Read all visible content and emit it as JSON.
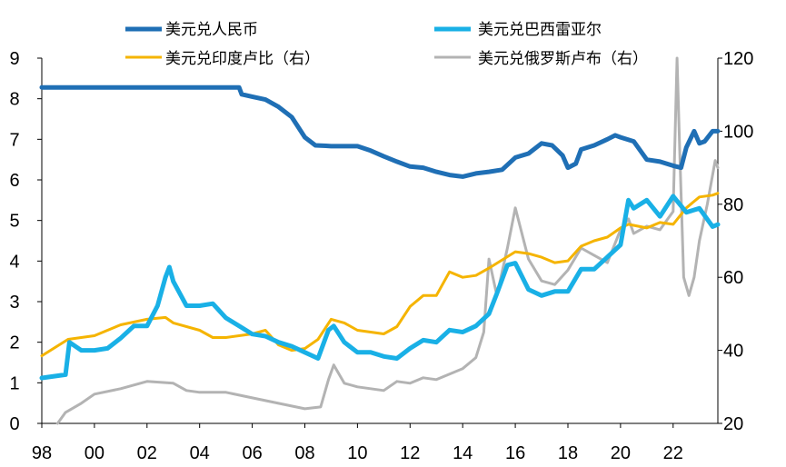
{
  "chart_data": {
    "type": "line",
    "title": "",
    "xlabel": "",
    "ylabel": "",
    "y2label": "",
    "grid": false,
    "legend_position": "top",
    "xlim": [
      1998,
      2023.7
    ],
    "ylim": [
      0,
      9
    ],
    "y2lim": [
      20,
      120
    ],
    "x_tick_values": [
      1998,
      2000,
      2002,
      2004,
      2006,
      2008,
      2010,
      2012,
      2014,
      2016,
      2018,
      2020,
      2022
    ],
    "x_tick_labels": [
      "98",
      "00",
      "02",
      "04",
      "06",
      "08",
      "10",
      "12",
      "14",
      "16",
      "18",
      "20",
      "22"
    ],
    "y_ticks": [
      "0",
      "1",
      "2",
      "3",
      "4",
      "5",
      "6",
      "7",
      "8",
      "9"
    ],
    "y2_ticks": [
      "20",
      "40",
      "60",
      "80",
      "100",
      "120"
    ],
    "series": [
      {
        "name": "美元兑人民币",
        "axis": "left",
        "color": "#1f6fb5",
        "width": 5,
        "x": [
          1998,
          2005.5,
          2005.6,
          2006,
          2006.5,
          2007,
          2007.5,
          2008,
          2008.4,
          2008.8,
          2009,
          2010,
          2010.5,
          2011,
          2011.5,
          2012,
          2012.5,
          2013,
          2013.5,
          2014,
          2014.5,
          2015,
          2015.5,
          2016,
          2016.5,
          2017,
          2017.4,
          2017.8,
          2018,
          2018.3,
          2018.5,
          2019,
          2019.5,
          2019.8,
          2020,
          2020.5,
          2021,
          2021.5,
          2022,
          2022.3,
          2022.5,
          2022.8,
          2023,
          2023.2,
          2023.5,
          2023.7
        ],
        "values": [
          8.28,
          8.28,
          8.11,
          8.05,
          7.98,
          7.8,
          7.55,
          7.05,
          6.85,
          6.84,
          6.83,
          6.83,
          6.72,
          6.58,
          6.45,
          6.33,
          6.3,
          6.2,
          6.12,
          6.08,
          6.16,
          6.2,
          6.25,
          6.55,
          6.65,
          6.9,
          6.85,
          6.6,
          6.3,
          6.4,
          6.75,
          6.85,
          7.0,
          7.1,
          7.05,
          6.95,
          6.5,
          6.45,
          6.35,
          6.3,
          6.8,
          7.2,
          6.9,
          6.95,
          7.2,
          7.2
        ]
      },
      {
        "name": "美元兑巴西雷亚尔",
        "axis": "left",
        "color": "#19b0e6",
        "width": 5,
        "x": [
          1998,
          1998.9,
          1999.05,
          1999.5,
          2000,
          2000.5,
          2001,
          2001.5,
          2002,
          2002.4,
          2002.7,
          2002.85,
          2003,
          2003.5,
          2004,
          2004.5,
          2005,
          2005.5,
          2006,
          2006.5,
          2007,
          2007.5,
          2008,
          2008.5,
          2008.9,
          2009.1,
          2009.5,
          2010,
          2010.5,
          2011,
          2011.5,
          2012,
          2012.5,
          2013,
          2013.5,
          2014,
          2014.5,
          2015,
          2015.3,
          2015.7,
          2016,
          2016.5,
          2017,
          2017.5,
          2018,
          2018.5,
          2019,
          2019.5,
          2020,
          2020.3,
          2020.5,
          2021,
          2021.5,
          2022,
          2022.5,
          2023,
          2023.5,
          2023.7
        ],
        "values": [
          1.12,
          1.2,
          2.0,
          1.8,
          1.8,
          1.85,
          2.1,
          2.4,
          2.4,
          2.9,
          3.6,
          3.85,
          3.5,
          2.9,
          2.9,
          2.95,
          2.6,
          2.4,
          2.2,
          2.15,
          2.0,
          1.9,
          1.75,
          1.6,
          2.3,
          2.4,
          2.0,
          1.75,
          1.75,
          1.65,
          1.6,
          1.85,
          2.05,
          2.0,
          2.3,
          2.25,
          2.4,
          2.7,
          3.2,
          3.9,
          3.95,
          3.3,
          3.15,
          3.25,
          3.25,
          3.8,
          3.8,
          4.1,
          4.4,
          5.5,
          5.3,
          5.5,
          5.1,
          5.6,
          5.2,
          5.3,
          4.85,
          4.9
        ]
      },
      {
        "name": "美元兑印度卢比（右）",
        "axis": "right",
        "color": "#f5b400",
        "width": 3,
        "x": [
          1998,
          1999,
          2000,
          2001,
          2002,
          2002.7,
          2003,
          2004,
          2004.5,
          2005,
          2006,
          2006.5,
          2007,
          2007.5,
          2008,
          2008.5,
          2009,
          2009.5,
          2010,
          2011,
          2011.5,
          2012,
          2012.5,
          2013,
          2013.5,
          2014,
          2014.5,
          2015,
          2016,
          2016.5,
          2017,
          2017.5,
          2018,
          2018.5,
          2019,
          2019.5,
          2020,
          2020.3,
          2021,
          2021.5,
          2022,
          2022.5,
          2023,
          2023.5,
          2023.7
        ],
        "values": [
          38.5,
          43.0,
          44.0,
          47.0,
          48.5,
          49.0,
          47.5,
          45.5,
          43.5,
          43.5,
          44.5,
          45.5,
          41.5,
          40.0,
          40.5,
          43.0,
          48.5,
          47.5,
          45.5,
          44.5,
          46.5,
          52.0,
          55.0,
          55.0,
          61.5,
          60.0,
          60.5,
          62.5,
          67.0,
          66.5,
          65.5,
          64.0,
          64.5,
          68.5,
          70.0,
          71.0,
          73.5,
          74.5,
          73.5,
          75.0,
          74.5,
          79.0,
          82.0,
          82.5,
          83.0
        ]
      },
      {
        "name": "美元兑俄罗斯卢布（右）",
        "axis": "right",
        "color": "#b3b3b3",
        "width": 3,
        "x": [
          1998.6,
          1998.9,
          1999.5,
          2000,
          2001,
          2002,
          2003,
          2003.5,
          2004,
          2005,
          2006,
          2007,
          2008,
          2008.6,
          2008.9,
          2009.1,
          2009.5,
          2010,
          2011,
          2011.5,
          2012,
          2012.5,
          2013,
          2013.5,
          2014,
          2014.5,
          2014.8,
          2015,
          2015.3,
          2015.7,
          2016,
          2016.5,
          2017,
          2017.5,
          2018,
          2018.5,
          2019,
          2019.5,
          2020,
          2020.3,
          2020.5,
          2021,
          2021.5,
          2022,
          2022.15,
          2022.25,
          2022.4,
          2022.6,
          2022.8,
          2023,
          2023.3,
          2023.6,
          2023.7
        ],
        "values": [
          20.0,
          23.0,
          25.5,
          28.0,
          29.5,
          31.5,
          31.0,
          29.0,
          28.5,
          28.5,
          27.0,
          25.5,
          24.0,
          24.5,
          32.0,
          36.0,
          31.0,
          30.0,
          29.0,
          31.5,
          31.0,
          32.5,
          32.0,
          33.5,
          35.0,
          38.0,
          45.0,
          65.0,
          55.0,
          68.0,
          79.0,
          65.0,
          59.0,
          58.0,
          62.0,
          68.0,
          66.0,
          64.0,
          73.0,
          76.0,
          72.0,
          74.0,
          73.0,
          78.0,
          120.0,
          95.0,
          60.0,
          55.0,
          60.0,
          70.0,
          80.0,
          92.0,
          90.0
        ]
      }
    ]
  }
}
